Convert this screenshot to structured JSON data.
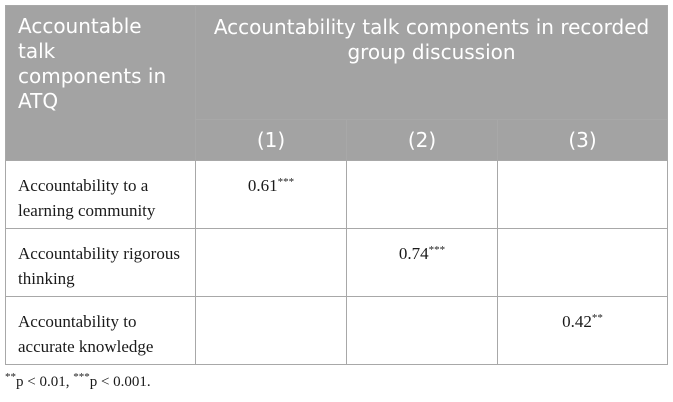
{
  "table": {
    "corner_header": "Accountable talk components in ATQ",
    "span_header": "Accountability talk components in recorded group discussion",
    "columns": [
      "(1)",
      "(2)",
      "(3)"
    ],
    "rows": [
      {
        "label": "Accountability to a learning community",
        "cells": [
          {
            "value": "0.61",
            "sig": "***"
          },
          {
            "value": "",
            "sig": ""
          },
          {
            "value": "",
            "sig": ""
          }
        ]
      },
      {
        "label": "Accountability rigorous thinking",
        "cells": [
          {
            "value": "",
            "sig": ""
          },
          {
            "value": "0.74",
            "sig": "***"
          },
          {
            "value": "",
            "sig": ""
          }
        ]
      },
      {
        "label": "Accountability to accurate knowledge",
        "cells": [
          {
            "value": "",
            "sig": ""
          },
          {
            "value": "",
            "sig": ""
          },
          {
            "value": "0.42",
            "sig": "**"
          }
        ]
      }
    ]
  },
  "footnote": {
    "sig1_mark": "**",
    "sig1_text": "p < 0.01, ",
    "sig2_mark": "***",
    "sig2_text": "p < 0.001."
  }
}
